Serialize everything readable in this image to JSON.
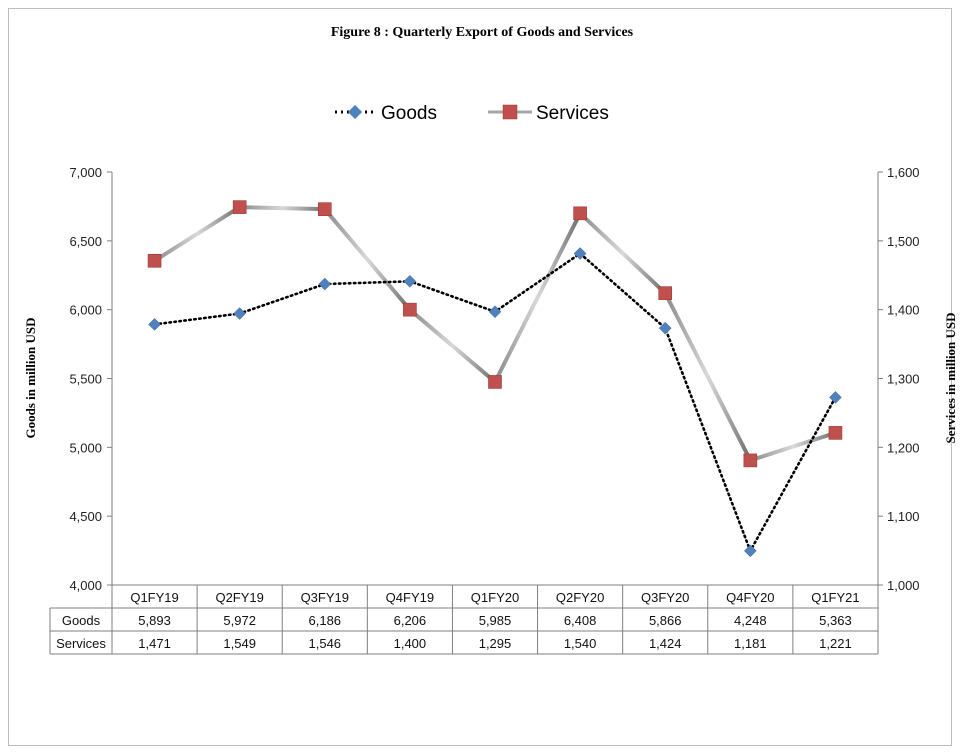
{
  "chart_data": {
    "type": "line",
    "title": "Figure  8 : Quarterly Export of Goods and Services",
    "categories": [
      "Q1FY19",
      "Q2FY19",
      "Q3FY19",
      "Q4FY19",
      "Q1FY20",
      "Q2FY20",
      "Q3FY20",
      "Q4FY20",
      "Q1FY21"
    ],
    "series": [
      {
        "name": "Goods",
        "axis": "left",
        "values": [
          5893,
          5972,
          6186,
          6206,
          5985,
          6408,
          5866,
          4248,
          5363
        ],
        "color": "#4f81bd",
        "line_style": "dotted",
        "marker": "diamond"
      },
      {
        "name": "Services",
        "axis": "right",
        "values": [
          1471,
          1549,
          1546,
          1400,
          1295,
          1540,
          1424,
          1181,
          1221
        ],
        "color": "#c0504d",
        "line_style": "gradient-gray",
        "marker": "square"
      }
    ],
    "ylabel": "Goods in million USD",
    "y2label": "Services in million  USD",
    "ylim": [
      4000,
      7000
    ],
    "y2lim": [
      1000,
      1600
    ],
    "yticks": [
      "4,000",
      "4,500",
      "5,000",
      "5,500",
      "6,000",
      "6,500",
      "7,000"
    ],
    "y2ticks": [
      "1,000",
      "1,100",
      "1,200",
      "1,300",
      "1,400",
      "1,500",
      "1,600"
    ],
    "legend_position": "top-center",
    "grid": false,
    "data_table": {
      "rows": [
        {
          "label": "Goods",
          "cells": [
            "5,893",
            "5,972",
            "6,186",
            "6,206",
            "5,985",
            "6,408",
            "5,866",
            "4,248",
            "5,363"
          ]
        },
        {
          "label": "Services",
          "cells": [
            "1,471",
            "1,549",
            "1,546",
            "1,400",
            "1,295",
            "1,540",
            "1,424",
            "1,181",
            "1,221"
          ]
        }
      ]
    }
  }
}
